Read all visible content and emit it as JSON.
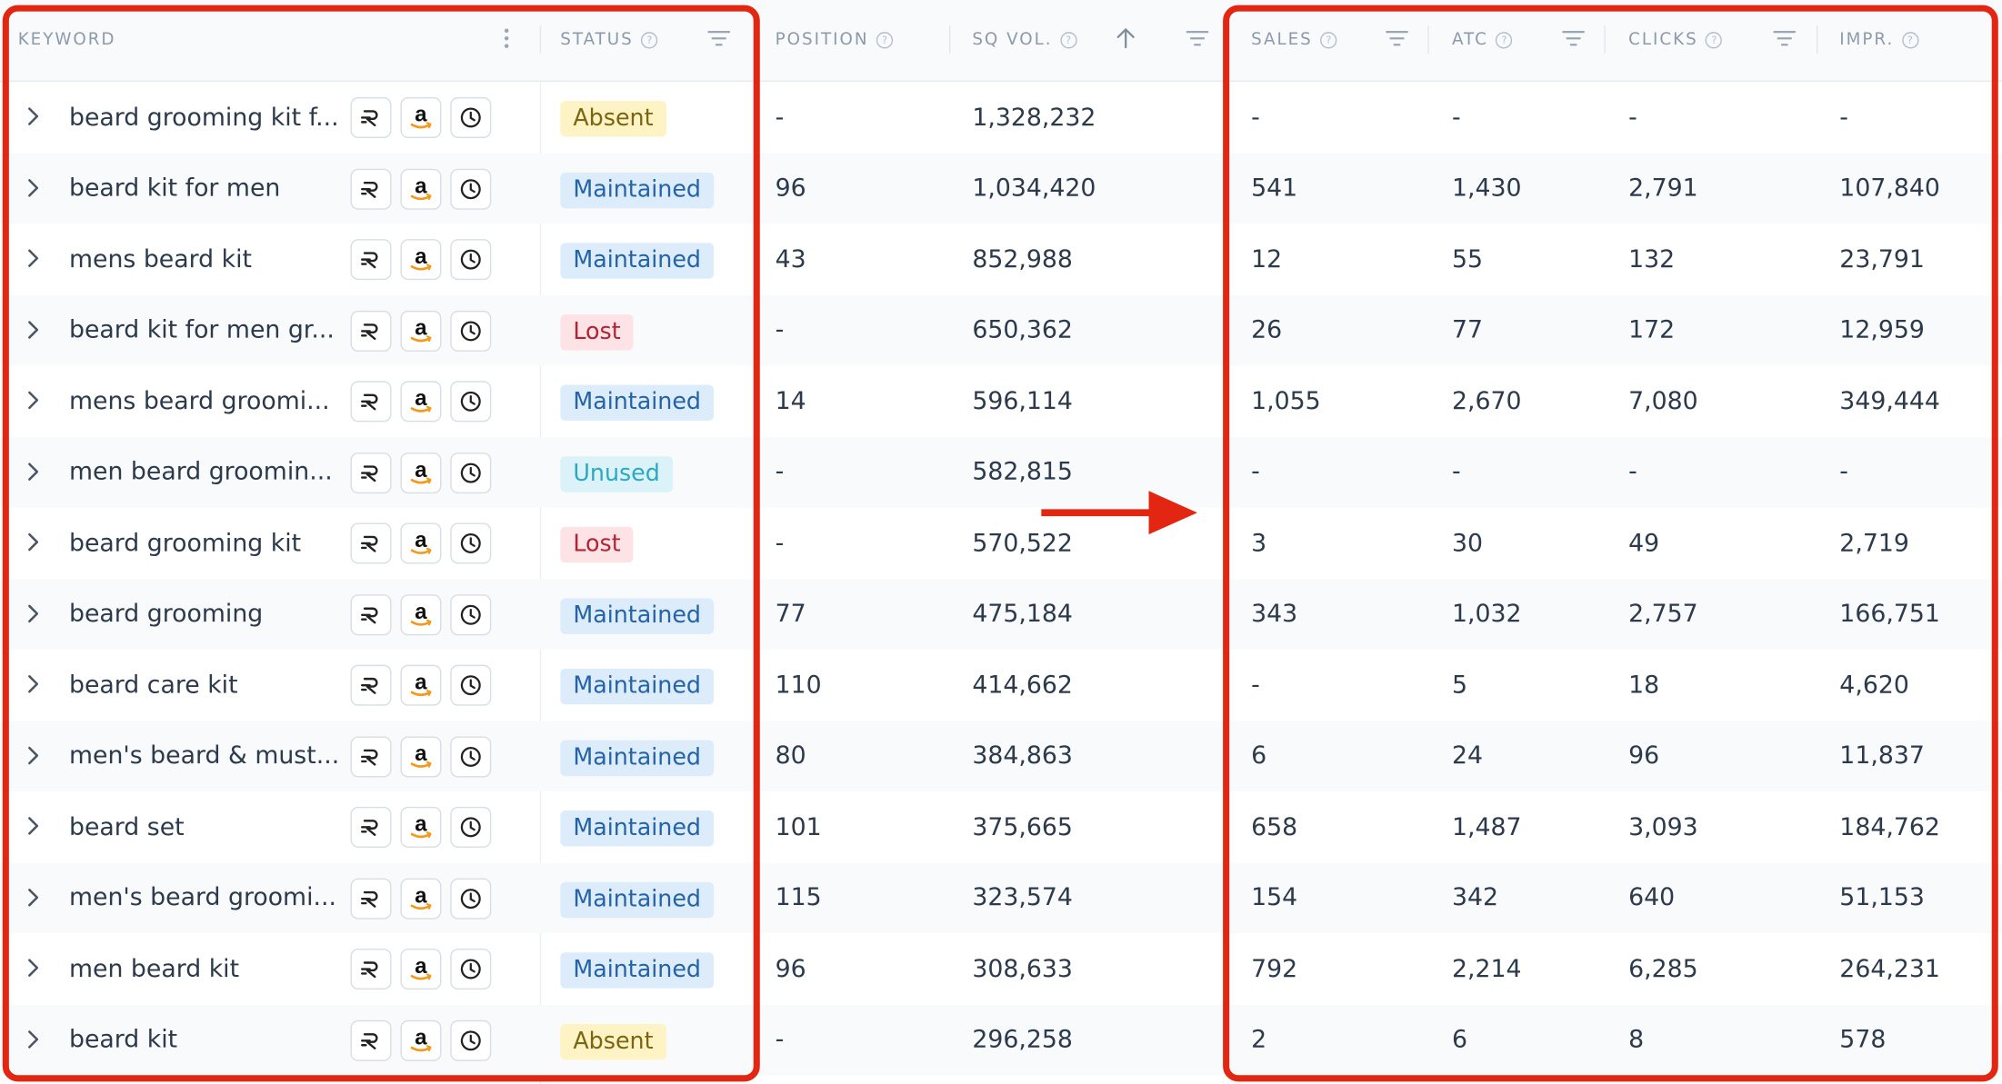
{
  "columns": {
    "keyword": "KEYWORD",
    "status": "STATUS",
    "position": "POSITION",
    "sq_vol": "SQ VOL.",
    "sales": "SALES",
    "atc": "ATC",
    "clicks": "CLICKS",
    "impr": "IMPR."
  },
  "help_glyph": "?",
  "sort_column": "SQ VOL.",
  "sort_direction": "descending",
  "annotation": {
    "frame_color": "#e22612",
    "arrow_color": "#e22612"
  },
  "status_colors": {
    "Absent": {
      "bg": "#fdf3c4",
      "fg": "#7c6410"
    },
    "Maintained": {
      "bg": "#dcecfb",
      "fg": "#2463a8"
    },
    "Lost": {
      "bg": "#fde3e6",
      "fg": "#b42332"
    },
    "Unused": {
      "bg": "#dbf3f8",
      "fg": "#2aa9c4"
    }
  },
  "row_icons": [
    "rank-tracker-icon",
    "amazon-icon",
    "history-icon"
  ],
  "rows": [
    {
      "keyword": "beard grooming kit f...",
      "status": "Absent",
      "position": "-",
      "sq_vol": "1,328,232",
      "sales": "-",
      "atc": "-",
      "clicks": "-",
      "impr": "-"
    },
    {
      "keyword": "beard kit for men",
      "status": "Maintained",
      "position": "96",
      "sq_vol": "1,034,420",
      "sales": "541",
      "atc": "1,430",
      "clicks": "2,791",
      "impr": "107,840"
    },
    {
      "keyword": "mens beard kit",
      "status": "Maintained",
      "position": "43",
      "sq_vol": "852,988",
      "sales": "12",
      "atc": "55",
      "clicks": "132",
      "impr": "23,791"
    },
    {
      "keyword": "beard kit for men gr...",
      "status": "Lost",
      "position": "-",
      "sq_vol": "650,362",
      "sales": "26",
      "atc": "77",
      "clicks": "172",
      "impr": "12,959"
    },
    {
      "keyword": "mens beard groomi...",
      "status": "Maintained",
      "position": "14",
      "sq_vol": "596,114",
      "sales": "1,055",
      "atc": "2,670",
      "clicks": "7,080",
      "impr": "349,444"
    },
    {
      "keyword": "men beard groomin...",
      "status": "Unused",
      "position": "-",
      "sq_vol": "582,815",
      "sales": "-",
      "atc": "-",
      "clicks": "-",
      "impr": "-"
    },
    {
      "keyword": "beard grooming kit",
      "status": "Lost",
      "position": "-",
      "sq_vol": "570,522",
      "sales": "3",
      "atc": "30",
      "clicks": "49",
      "impr": "2,719"
    },
    {
      "keyword": "beard grooming",
      "status": "Maintained",
      "position": "77",
      "sq_vol": "475,184",
      "sales": "343",
      "atc": "1,032",
      "clicks": "2,757",
      "impr": "166,751"
    },
    {
      "keyword": "beard care kit",
      "status": "Maintained",
      "position": "110",
      "sq_vol": "414,662",
      "sales": "-",
      "atc": "5",
      "clicks": "18",
      "impr": "4,620"
    },
    {
      "keyword": "men's beard & must...",
      "status": "Maintained",
      "position": "80",
      "sq_vol": "384,863",
      "sales": "6",
      "atc": "24",
      "clicks": "96",
      "impr": "11,837"
    },
    {
      "keyword": "beard set",
      "status": "Maintained",
      "position": "101",
      "sq_vol": "375,665",
      "sales": "658",
      "atc": "1,487",
      "clicks": "3,093",
      "impr": "184,762"
    },
    {
      "keyword": "men's beard groomi...",
      "status": "Maintained",
      "position": "115",
      "sq_vol": "323,574",
      "sales": "154",
      "atc": "342",
      "clicks": "640",
      "impr": "51,153"
    },
    {
      "keyword": "men beard kit",
      "status": "Maintained",
      "position": "96",
      "sq_vol": "308,633",
      "sales": "792",
      "atc": "2,214",
      "clicks": "6,285",
      "impr": "264,231"
    },
    {
      "keyword": "beard kit",
      "status": "Absent",
      "position": "-",
      "sq_vol": "296,258",
      "sales": "2",
      "atc": "6",
      "clicks": "8",
      "impr": "578"
    }
  ]
}
